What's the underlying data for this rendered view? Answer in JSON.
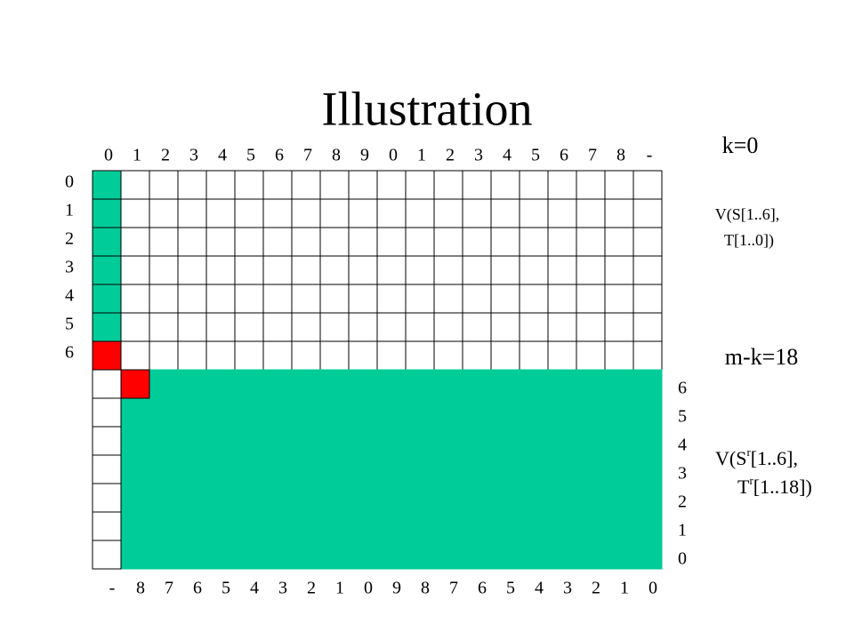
{
  "title": "Illustration",
  "top_labels": [
    "0",
    "1",
    "2",
    "3",
    "4",
    "5",
    "6",
    "7",
    "8",
    "9",
    "0",
    "1",
    "2",
    "3",
    "4",
    "5",
    "6",
    "7",
    "8",
    "-"
  ],
  "left_labels": [
    "0",
    "1",
    "2",
    "3",
    "4",
    "5",
    "6"
  ],
  "right_labels": [
    "6",
    "5",
    "4",
    "3",
    "2",
    "1",
    "0"
  ],
  "bottom_labels": [
    "-",
    "8",
    "7",
    "6",
    "5",
    "4",
    "3",
    "2",
    "1",
    "0",
    "9",
    "8",
    "7",
    "6",
    "5",
    "4",
    "3",
    "2",
    "1",
    "0"
  ],
  "top_note": {
    "heading": "k=0",
    "line1": "V(S[1..6],",
    "line2": "T[1..0])"
  },
  "bottom_note": {
    "heading": "m-k=18",
    "line1": [
      "V(S",
      "r",
      "[1..6],"
    ],
    "line2": [
      "T",
      "r",
      "[1..18])"
    ]
  }
}
